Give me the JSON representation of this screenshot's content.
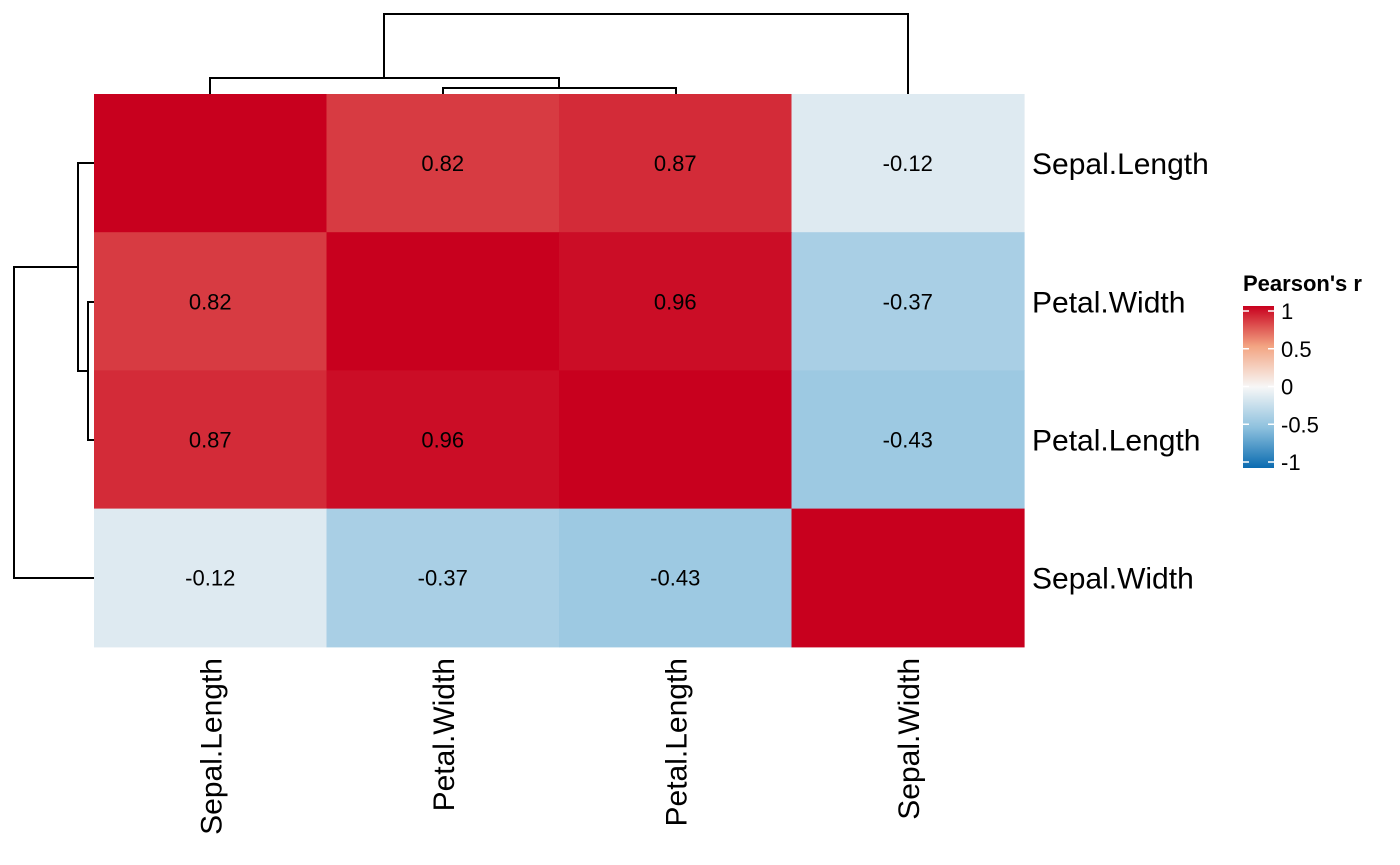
{
  "chart_data": {
    "type": "heatmap",
    "rows": [
      "Sepal.Length",
      "Petal.Width",
      "Petal.Length",
      "Sepal.Width"
    ],
    "columns": [
      "Sepal.Length",
      "Petal.Width",
      "Petal.Length",
      "Sepal.Width"
    ],
    "values": [
      [
        1.0,
        0.82,
        0.87,
        -0.12
      ],
      [
        0.82,
        1.0,
        0.96,
        -0.37
      ],
      [
        0.87,
        0.96,
        1.0,
        -0.43
      ],
      [
        -0.12,
        -0.37,
        -0.43,
        1.0
      ]
    ],
    "cell_labels": [
      [
        "",
        "0.82",
        "0.87",
        "-0.12"
      ],
      [
        "0.82",
        "",
        "0.96",
        "-0.37"
      ],
      [
        "0.87",
        "0.96",
        "",
        "-0.43"
      ],
      [
        "-0.12",
        "-0.37",
        "-0.43",
        ""
      ]
    ],
    "value_range": [
      -1,
      1
    ],
    "legend": {
      "title": "Pearson's r",
      "ticks": [
        1,
        0.5,
        0,
        -0.5,
        -1
      ],
      "tick_labels": [
        "1",
        "0.5",
        "0",
        "-0.5",
        "-1"
      ],
      "placement": "right"
    },
    "colors": {
      "high": "#C8001E",
      "mid": "#F7F7F7",
      "low": "#0A6BB0"
    },
    "dendrogram": {
      "columns": true,
      "rows": true
    }
  }
}
